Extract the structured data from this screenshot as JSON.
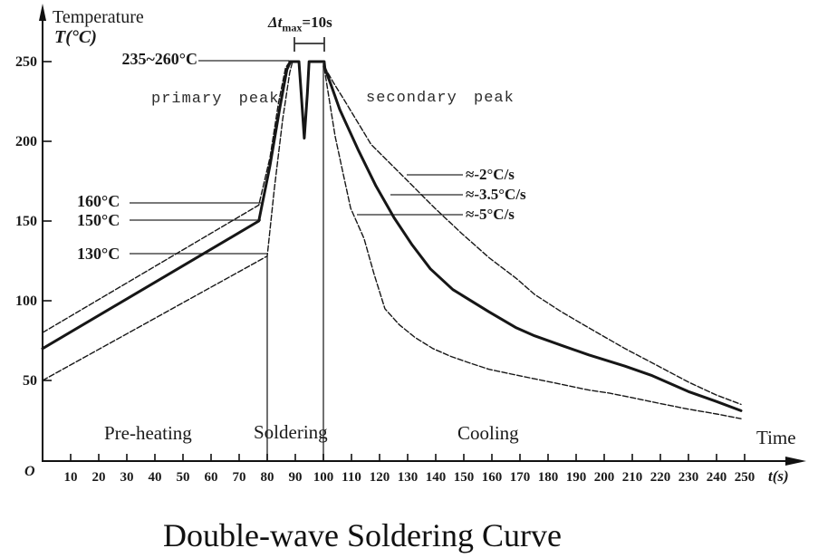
{
  "title": "Double-wave Soldering Curve",
  "axes": {
    "y_title": "Temperature",
    "y_unit": "T(°C)",
    "x_title": "Time",
    "x_unit": "t(s)",
    "origin": "O"
  },
  "annotations": {
    "peak_range": "235~260°C",
    "primary_peak": "primary peak",
    "secondary_peak": "secondary peak",
    "dt_prefix": "Δt",
    "dt_sub": "max",
    "dt_value": "=10s",
    "t160": "160°C",
    "t150": "150°C",
    "t130": "130°C",
    "rate_slow": "≈-2°C/s",
    "rate_mid": "≈-3.5°C/s",
    "rate_fast": "≈-5°C/s",
    "phase_preheat": "Pre-heating",
    "phase_soldering": "Soldering",
    "phase_cooling": "Cooling"
  },
  "chart_data": {
    "type": "line",
    "title": "Double-wave Soldering Curve",
    "xlabel": "t(s)",
    "ylabel": "T(°C)",
    "xlim": [
      0,
      260
    ],
    "ylim": [
      0,
      285
    ],
    "grid": false,
    "x_ticks": [
      10,
      20,
      30,
      40,
      50,
      60,
      70,
      80,
      90,
      100,
      110,
      120,
      130,
      140,
      150,
      160,
      170,
      180,
      190,
      200,
      210,
      220,
      230,
      240,
      250
    ],
    "y_ticks": [
      50,
      100,
      150,
      200,
      250
    ],
    "phases": [
      {
        "name": "Pre-heating",
        "t_range": [
          0,
          80
        ]
      },
      {
        "name": "Soldering",
        "t_range": [
          80,
          100
        ]
      },
      {
        "name": "Cooling",
        "t_range": [
          100,
          250
        ]
      }
    ],
    "key_values": {
      "peak_temp_range_c": "235~260",
      "dt_max_s": 10,
      "dip_between_peaks_c": 200,
      "preheat_end_temps_c": [
        160,
        150,
        130
      ],
      "start_temps_c": [
        80,
        70,
        50
      ],
      "cooling_rates_c_per_s": [
        -2,
        -3.5,
        -5
      ]
    },
    "series": [
      {
        "name": "preheat-upper-160C",
        "style": "thin",
        "points": [
          [
            0,
            80
          ],
          [
            77,
            160
          ],
          [
            81,
            190
          ],
          [
            84,
            224
          ],
          [
            86.5,
            246
          ],
          [
            88,
            250
          ]
        ]
      },
      {
        "name": "preheat-main-150C",
        "style": "thick",
        "points": [
          [
            0,
            70
          ],
          [
            77,
            150
          ],
          [
            81,
            185
          ],
          [
            84.5,
            221
          ],
          [
            87,
            245
          ],
          [
            88.3,
            250
          ]
        ]
      },
      {
        "name": "preheat-lower-130C",
        "style": "thin",
        "points": [
          [
            0,
            50
          ],
          [
            80,
            128
          ],
          [
            82.5,
            170
          ],
          [
            85.5,
            214
          ],
          [
            88,
            243
          ],
          [
            89,
            250
          ]
        ]
      },
      {
        "name": "double-peak",
        "style": "thick",
        "points": [
          [
            88,
            250
          ],
          [
            91.3,
            250
          ],
          [
            92.1,
            230
          ],
          [
            93.2,
            202
          ],
          [
            94.3,
            230
          ],
          [
            94.9,
            250
          ],
          [
            100.3,
            250
          ],
          [
            100.5,
            246
          ]
        ]
      },
      {
        "name": "cooling-2C-per-s",
        "style": "thin",
        "rate": "≈-2°C/s",
        "points": [
          [
            100.3,
            247
          ],
          [
            103.5,
            237
          ],
          [
            107.4,
            226
          ],
          [
            117,
            198
          ],
          [
            128.4,
            178
          ],
          [
            139.7,
            158
          ],
          [
            149.4,
            142
          ],
          [
            159,
            127
          ],
          [
            168.7,
            114
          ],
          [
            175.2,
            104
          ],
          [
            184.8,
            93
          ],
          [
            194.5,
            83
          ],
          [
            207.4,
            70
          ],
          [
            217.1,
            61
          ],
          [
            230,
            49
          ],
          [
            239.7,
            41
          ],
          [
            248.7,
            35
          ]
        ]
      },
      {
        "name": "cooling-3.5C-per-s",
        "style": "thick",
        "rate": "≈-3.5°C/s",
        "points": [
          [
            100.3,
            247
          ],
          [
            103,
            234
          ],
          [
            105.8,
            220
          ],
          [
            112.3,
            195
          ],
          [
            118.7,
            172
          ],
          [
            125.2,
            152
          ],
          [
            131.6,
            135
          ],
          [
            138.1,
            120
          ],
          [
            146.1,
            107
          ],
          [
            159,
            93
          ],
          [
            168.7,
            83
          ],
          [
            175.2,
            78
          ],
          [
            184.8,
            72
          ],
          [
            194.5,
            66
          ],
          [
            207.4,
            59
          ],
          [
            217.1,
            53
          ],
          [
            230,
            43
          ],
          [
            239.7,
            37
          ],
          [
            248.7,
            31
          ]
        ]
      },
      {
        "name": "cooling-5C-per-s",
        "style": "thin",
        "rate": "≈-5°C/s",
        "points": [
          [
            100.3,
            246
          ],
          [
            102.2,
            225
          ],
          [
            104.2,
            203
          ],
          [
            107,
            180
          ],
          [
            109.7,
            158
          ],
          [
            114.5,
            139
          ],
          [
            118,
            117
          ],
          [
            121.9,
            95
          ],
          [
            127,
            85
          ],
          [
            132.6,
            77
          ],
          [
            139,
            70
          ],
          [
            145.5,
            65
          ],
          [
            152,
            61
          ],
          [
            159,
            57
          ],
          [
            167,
            54
          ],
          [
            175.2,
            51
          ],
          [
            185,
            47.5
          ],
          [
            194.5,
            44
          ],
          [
            202,
            42
          ],
          [
            210.6,
            39
          ],
          [
            220,
            35.5
          ],
          [
            230,
            32
          ],
          [
            240,
            29
          ],
          [
            248.7,
            26
          ]
        ]
      }
    ]
  }
}
